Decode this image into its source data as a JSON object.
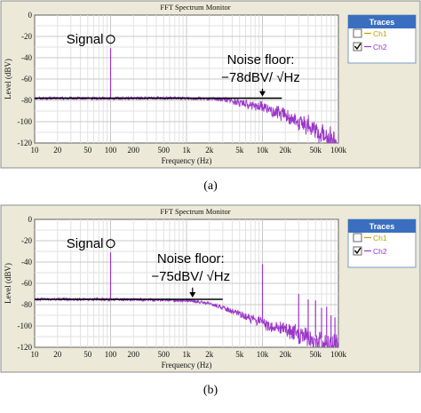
{
  "panels": [
    {
      "window_title": "FFT Spectrum Monitor",
      "caption": "(a)",
      "legend": {
        "title": "Traces",
        "items": [
          {
            "label": "Ch1",
            "checked": false,
            "color": "#b8a400"
          },
          {
            "label": "Ch2",
            "checked": true,
            "color": "#9b36c8"
          }
        ]
      },
      "annotations": {
        "signal": "Signal",
        "noise_title": "Noise floor:",
        "noise_value": "−78dBV/ √Hz"
      }
    },
    {
      "window_title": "FFT Spectrum Monitor",
      "caption": "(b)",
      "legend": {
        "title": "Traces",
        "items": [
          {
            "label": "Ch1",
            "checked": false,
            "color": "#b8a400"
          },
          {
            "label": "Ch2",
            "checked": true,
            "color": "#9b36c8"
          }
        ]
      },
      "annotations": {
        "signal": "Signal",
        "noise_title": "Noise floor:",
        "noise_value": "−75dBV/ √Hz"
      }
    }
  ],
  "chart_data": [
    {
      "type": "line",
      "xlabel": "Frequency (Hz)",
      "ylabel": "Level (dBV)",
      "xscale": "log",
      "xlim": [
        10,
        100000
      ],
      "ylim": [
        -120,
        0
      ],
      "x_ticks": [
        10,
        20,
        50,
        100,
        200,
        500,
        1000,
        2000,
        5000,
        10000,
        20000,
        50000,
        100000
      ],
      "x_tick_labels": [
        "10",
        "20",
        "50",
        "100",
        "200",
        "500",
        "1k",
        "2k",
        "5k",
        "10k",
        "20k",
        "50k",
        "100k"
      ],
      "y_ticks": [
        0,
        -20,
        -40,
        -60,
        -80,
        -100,
        -120
      ],
      "y_tick_labels": [
        "0",
        "-20",
        "-40",
        "-60",
        "-80",
        "-100",
        "-120"
      ],
      "grid": true,
      "series": [
        {
          "name": "Ch2",
          "color": "#9b36c8",
          "peaks": [
            {
              "x": 100,
              "y": -31
            }
          ],
          "noise_envelope": [
            {
              "x": 10,
              "y": -78
            },
            {
              "x": 100,
              "y": -78
            },
            {
              "x": 1000,
              "y": -78
            },
            {
              "x": 3000,
              "y": -79
            },
            {
              "x": 5000,
              "y": -81
            },
            {
              "x": 10000,
              "y": -85
            },
            {
              "x": 20000,
              "y": -92
            },
            {
              "x": 50000,
              "y": -104
            },
            {
              "x": 100000,
              "y": -118
            }
          ]
        }
      ],
      "reference_line": {
        "y": -78,
        "x_from": 10,
        "x_to": 18000,
        "color": "#000000"
      },
      "annotation_marks": {
        "signal_circle": {
          "x": 100,
          "y": -31
        },
        "noise_arrow": {
          "x": 10000,
          "y_from": -69,
          "y_to": -78
        }
      }
    },
    {
      "type": "line",
      "xlabel": "Frequency (Hz)",
      "ylabel": "Level (dBV)",
      "xscale": "log",
      "xlim": [
        10,
        100000
      ],
      "ylim": [
        -120,
        0
      ],
      "x_ticks": [
        10,
        20,
        50,
        100,
        200,
        500,
        1000,
        2000,
        5000,
        10000,
        20000,
        50000,
        100000
      ],
      "x_tick_labels": [
        "10",
        "20",
        "50",
        "100",
        "200",
        "500",
        "1k",
        "2k",
        "5k",
        "10k",
        "20k",
        "50k",
        "100k"
      ],
      "y_ticks": [
        0,
        -20,
        -40,
        -60,
        -80,
        -100,
        -120
      ],
      "y_tick_labels": [
        "0",
        "-20",
        "-40",
        "-60",
        "-80",
        "-100",
        "-120"
      ],
      "grid": true,
      "series": [
        {
          "name": "Ch2",
          "color": "#9b36c8",
          "peaks": [
            {
              "x": 100,
              "y": -31
            },
            {
              "x": 10000,
              "y": -42
            },
            {
              "x": 30000,
              "y": -70
            },
            {
              "x": 40000,
              "y": -75
            },
            {
              "x": 50000,
              "y": -76
            },
            {
              "x": 60000,
              "y": -83
            },
            {
              "x": 70000,
              "y": -82
            },
            {
              "x": 80000,
              "y": -90
            },
            {
              "x": 90000,
              "y": -92
            }
          ],
          "noise_envelope": [
            {
              "x": 10,
              "y": -75
            },
            {
              "x": 100,
              "y": -75
            },
            {
              "x": 1000,
              "y": -76
            },
            {
              "x": 2000,
              "y": -79
            },
            {
              "x": 5000,
              "y": -88
            },
            {
              "x": 10000,
              "y": -95
            },
            {
              "x": 20000,
              "y": -102
            },
            {
              "x": 50000,
              "y": -110
            },
            {
              "x": 100000,
              "y": -114
            }
          ]
        }
      ],
      "reference_line": {
        "y": -75,
        "x_from": 10,
        "x_to": 3000,
        "color": "#000000"
      },
      "annotation_marks": {
        "signal_circle": {
          "x": 100,
          "y": -31
        },
        "noise_arrow": {
          "x": 1200,
          "y_from": -64,
          "y_to": -75
        }
      }
    }
  ]
}
